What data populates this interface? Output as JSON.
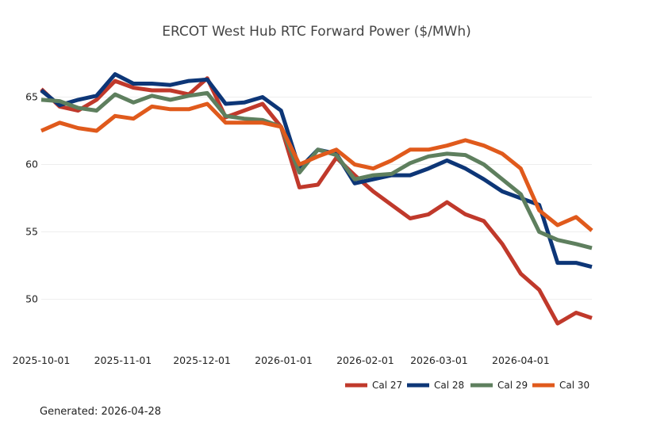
{
  "chart_data": {
    "type": "line",
    "title": "ERCOT West Hub RTC Forward Power ($/MWh)",
    "xlabel": "",
    "ylabel": "",
    "ylim": [
      47.5,
      67.5
    ],
    "xlim": [
      "2025-10-01",
      "2026-04-28"
    ],
    "yticks": [
      50,
      55,
      60,
      65
    ],
    "xticks": [
      "2025-10-01",
      "2025-11-01",
      "2025-12-01",
      "2026-01-01",
      "2026-02-01",
      "2026-03-01",
      "2026-04-01"
    ],
    "grid": true,
    "legend_position": "bottom-right",
    "x": [
      "2025-10-01",
      "2025-10-08",
      "2025-10-15",
      "2025-10-22",
      "2025-10-29",
      "2025-11-05",
      "2025-11-12",
      "2025-11-19",
      "2025-11-26",
      "2025-12-03",
      "2025-12-10",
      "2025-12-17",
      "2025-12-24",
      "2025-12-31",
      "2026-01-07",
      "2026-01-14",
      "2026-01-21",
      "2026-01-28",
      "2026-02-04",
      "2026-02-11",
      "2026-02-18",
      "2026-02-25",
      "2026-03-04",
      "2026-03-11",
      "2026-03-18",
      "2026-03-25",
      "2026-04-01",
      "2026-04-08",
      "2026-04-15",
      "2026-04-22",
      "2026-04-28"
    ],
    "series": [
      {
        "name": "Cal 27",
        "color": "#c0392b",
        "values": [
          65.6,
          64.3,
          64.0,
          64.8,
          66.2,
          65.7,
          65.5,
          65.5,
          65.2,
          66.4,
          63.5,
          64.0,
          64.5,
          62.8,
          58.3,
          58.5,
          60.5,
          59.2,
          58.0,
          57.0,
          56.0,
          56.3,
          57.2,
          56.3,
          55.8,
          54.1,
          51.9,
          50.7,
          48.2,
          49.0,
          48.6
        ]
      },
      {
        "name": "Cal 28",
        "color": "#0d3677",
        "values": [
          65.5,
          64.4,
          64.8,
          65.1,
          66.7,
          66.0,
          66.0,
          65.9,
          66.2,
          66.3,
          64.5,
          64.6,
          65.0,
          64.0,
          59.7,
          61.1,
          60.8,
          58.6,
          58.9,
          59.2,
          59.2,
          59.7,
          60.3,
          59.7,
          58.9,
          58.0,
          57.5,
          57.0,
          52.7,
          52.7,
          52.4
        ]
      },
      {
        "name": "Cal 29",
        "color": "#5e7f5e",
        "values": [
          64.8,
          64.7,
          64.2,
          64.0,
          65.2,
          64.6,
          65.1,
          64.8,
          65.1,
          65.3,
          63.6,
          63.4,
          63.3,
          62.8,
          59.4,
          61.1,
          60.7,
          58.9,
          59.2,
          59.3,
          60.1,
          60.6,
          60.8,
          60.7,
          60.0,
          58.9,
          57.8,
          55.0,
          54.4,
          54.1,
          53.8
        ]
      },
      {
        "name": "Cal 30",
        "color": "#e05a1c",
        "values": [
          62.5,
          63.1,
          62.7,
          62.5,
          63.6,
          63.4,
          64.3,
          64.1,
          64.1,
          64.5,
          63.1,
          63.1,
          63.1,
          62.8,
          60.0,
          60.6,
          61.1,
          60.0,
          59.7,
          60.3,
          61.1,
          61.1,
          61.4,
          61.8,
          61.4,
          60.8,
          59.7,
          56.6,
          55.5,
          56.1,
          55.1
        ]
      }
    ]
  },
  "footer": {
    "generated": "Generated: 2026-04-28"
  }
}
